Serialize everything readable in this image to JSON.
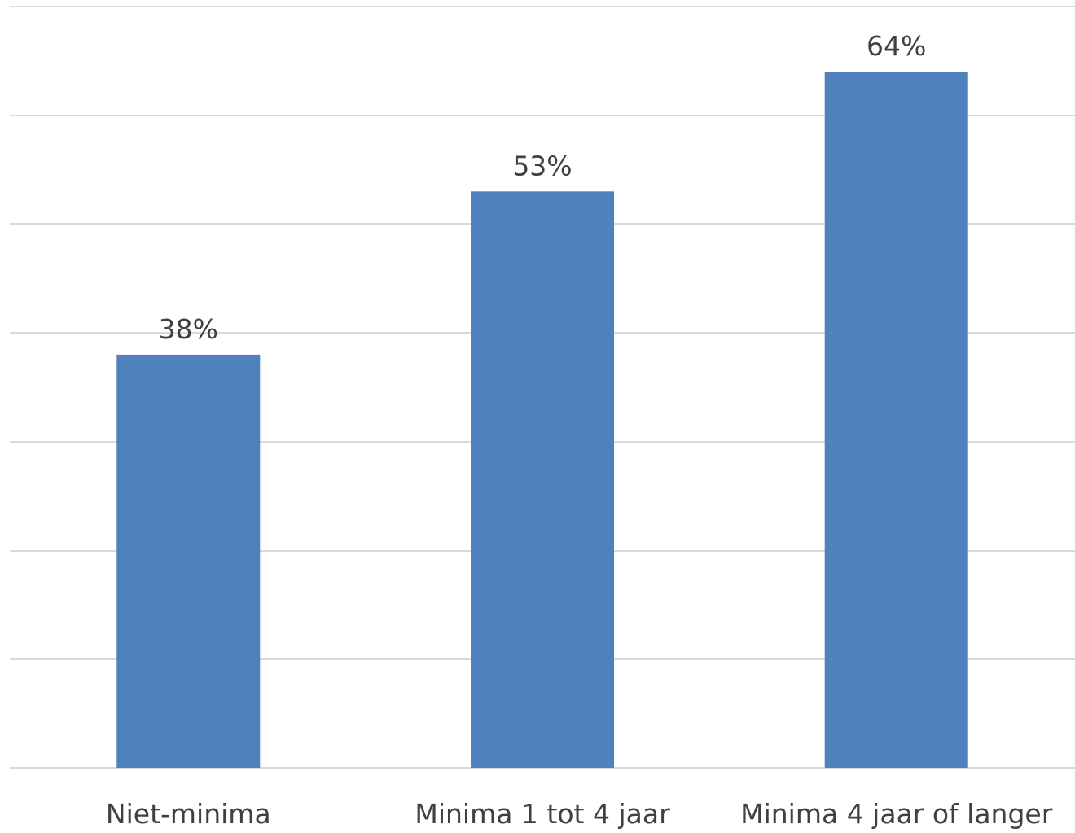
{
  "chart_data": {
    "type": "bar",
    "categories": [
      "Niet-minima",
      "Minima 1 tot 4 jaar",
      "Minima 4 jaar of langer"
    ],
    "values": [
      38,
      53,
      64
    ],
    "value_labels": [
      "38%",
      "53%",
      "64%"
    ],
    "ylim": [
      0,
      70
    ],
    "y_gridlines": [
      0,
      10,
      20,
      30,
      40,
      50,
      60,
      70
    ],
    "grid": true,
    "legend": "none",
    "bar_color": "#4f81bd"
  }
}
